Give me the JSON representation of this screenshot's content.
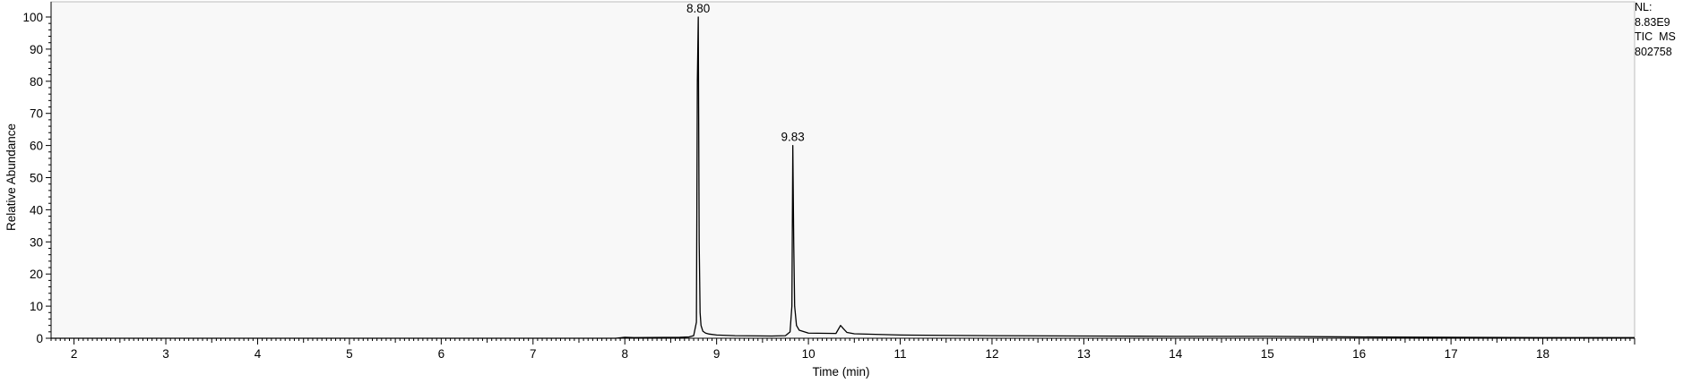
{
  "chart_data": {
    "type": "line",
    "title": "",
    "xlabel": "Time (min)",
    "ylabel": "Relative Abundance",
    "xlim": [
      1.75,
      19.0
    ],
    "ylim": [
      0,
      100
    ],
    "x_ticks": [
      "2",
      "3",
      "4",
      "5",
      "6",
      "7",
      "8",
      "9",
      "10",
      "11",
      "12",
      "13",
      "14",
      "15",
      "16",
      "17",
      "18"
    ],
    "y_ticks": [
      "0",
      "10",
      "20",
      "30",
      "40",
      "50",
      "60",
      "70",
      "80",
      "90",
      "100"
    ],
    "grid": false,
    "legend": "none",
    "peak_labels": [
      {
        "x": 8.8,
        "y": 100,
        "label": "8.80"
      },
      {
        "x": 9.83,
        "y": 60,
        "label": "9.83"
      }
    ],
    "series": [
      {
        "x": [
          1.75,
          7.9,
          8.0,
          8.1,
          8.6,
          8.7,
          8.75,
          8.78,
          8.79,
          8.8,
          8.81,
          8.82,
          8.83,
          8.85,
          8.88,
          8.92,
          9.0,
          9.2,
          9.6,
          9.75,
          9.8,
          9.82,
          9.83,
          9.84,
          9.85,
          9.87,
          9.9,
          10.0,
          10.3,
          10.35,
          10.38,
          10.42,
          10.5,
          11.0,
          12.0,
          13.0,
          14.0,
          15.0,
          16.0,
          17.0,
          18.0,
          19.0
        ],
        "y": [
          0,
          0,
          0.3,
          0.2,
          0.3,
          0.4,
          0.8,
          5,
          80,
          100,
          30,
          8,
          4,
          2.2,
          1.6,
          1.3,
          1.0,
          0.8,
          0.7,
          0.8,
          2,
          10,
          60,
          30,
          10,
          4,
          2.5,
          1.6,
          1.5,
          4,
          3,
          1.8,
          1.4,
          1.0,
          0.8,
          0.7,
          0.6,
          0.6,
          0.4,
          0.3,
          0.2,
          0.2
        ]
      }
    ]
  },
  "info_box": {
    "line1": "NL:",
    "line2": "8.83E9",
    "line3": "TIC  MS",
    "line4": "802758"
  },
  "colors": {
    "plot_background": "#f8f8f8",
    "trace": "#000000",
    "axis": "#000000"
  }
}
